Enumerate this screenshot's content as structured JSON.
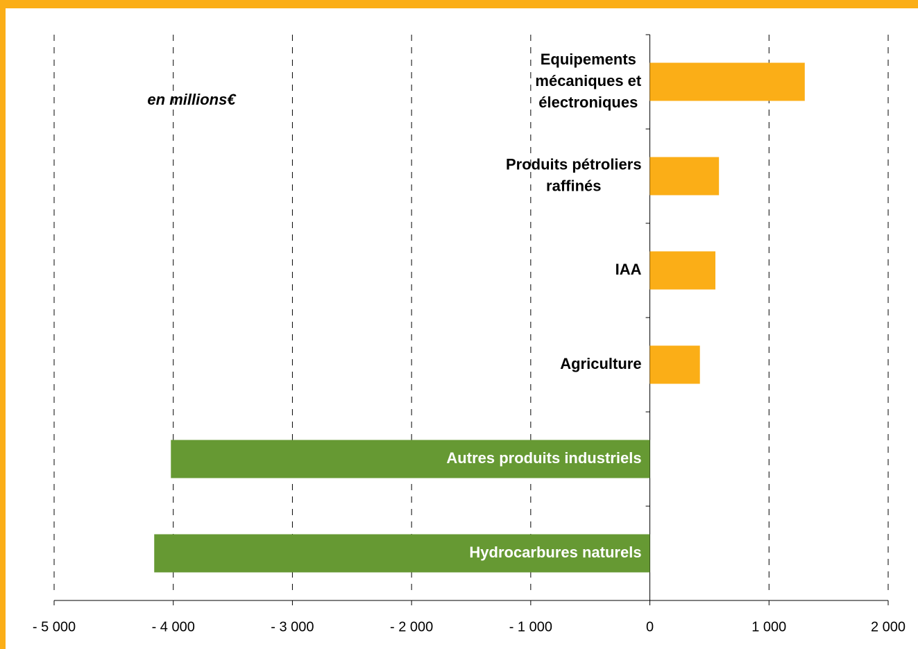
{
  "chart_data": {
    "type": "barh",
    "annotation": "en millions€",
    "categories": [
      "Equipements\nmécaniques et\nélectroniques",
      "Produits pétroliers\nraffinés",
      "IAA",
      "Agriculture",
      "Autres produits industriels",
      "Hydrocarbures naturels"
    ],
    "values": [
      1300,
      580,
      550,
      420,
      -4020,
      -4160
    ],
    "colors": [
      "#fbae17",
      "#fbae17",
      "#fbae17",
      "#fbae17",
      "#669933",
      "#669933"
    ],
    "xlim": [
      -5000,
      2000
    ],
    "xticks": [
      {
        "value": -5000,
        "label": "- 5 000"
      },
      {
        "value": -4000,
        "label": "- 4 000"
      },
      {
        "value": -3000,
        "label": "- 3 000"
      },
      {
        "value": -2000,
        "label": "- 2 000"
      },
      {
        "value": -1000,
        "label": "- 1 000"
      },
      0,
      {
        "value": 1000,
        "label": "1 000"
      },
      {
        "value": 2000,
        "label": "2 000"
      }
    ],
    "grid": true
  }
}
